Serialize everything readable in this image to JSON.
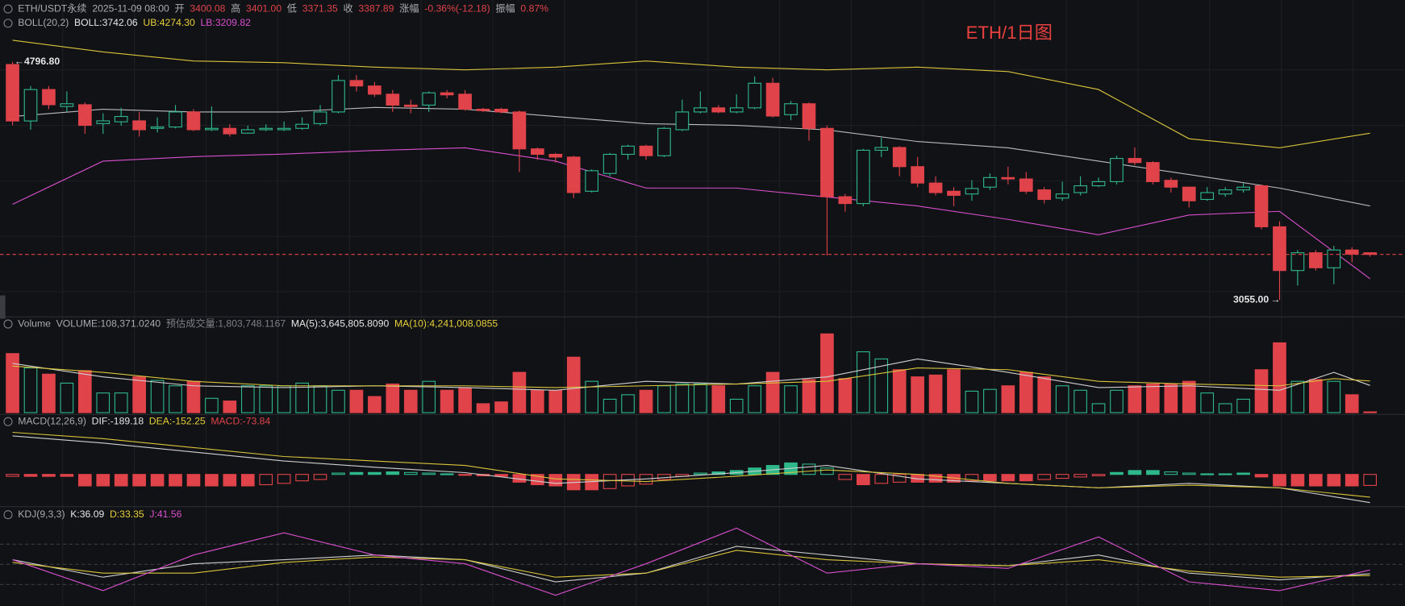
{
  "chart_data": {
    "type": "candlestick",
    "title": "ETH/1日图",
    "title_color": "#e8403f",
    "colors": {
      "up": "#2eb88a",
      "down": "#e0434a"
    },
    "annotations": {
      "high_label": "4796.80",
      "low_label": "3055.00"
    },
    "legends": {
      "main": [
        {
          "text": "ETH/USDT永续",
          "color": "#a9abb0"
        },
        {
          "text": "2025-11-09 08:00",
          "color": "#a9abb0"
        },
        {
          "text": "开",
          "color": "#a9abb0"
        },
        {
          "text": "3400.08",
          "color": "#e0434a"
        },
        {
          "text": "高",
          "color": "#a9abb0"
        },
        {
          "text": "3401.00",
          "color": "#e0434a"
        },
        {
          "text": "低",
          "color": "#a9abb0"
        },
        {
          "text": "3371.35",
          "color": "#e0434a"
        },
        {
          "text": "收",
          "color": "#a9abb0"
        },
        {
          "text": "3387.89",
          "color": "#e0434a"
        },
        {
          "text": "涨幅",
          "color": "#a9abb0"
        },
        {
          "text": "-0.36%(-12.18)",
          "color": "#e0434a"
        },
        {
          "text": "振幅",
          "color": "#a9abb0"
        },
        {
          "text": "0.87%",
          "color": "#e0434a"
        }
      ],
      "boll": [
        {
          "text": "BOLL(20,2)",
          "color": "#a9abb0"
        },
        {
          "text": "BOLL:3742.06",
          "color": "#e6e6e6"
        },
        {
          "text": "UB:4274.30",
          "color": "#e6cf3a"
        },
        {
          "text": "LB:3209.82",
          "color": "#d94fcf"
        }
      ],
      "volume": [
        {
          "text": "Volume",
          "color": "#a9abb0"
        },
        {
          "text": "VOLUME:108,371.0240",
          "color": "#a9abb0"
        },
        {
          "text": "预估成交量:1,803,748.1167",
          "color": "#7c7f86"
        },
        {
          "text": "MA(5):3,645,805.8090",
          "color": "#e6e6e6"
        },
        {
          "text": "MA(10):4,241,008.0855",
          "color": "#e6cf3a"
        }
      ],
      "macd": [
        {
          "text": "MACD(12,26,9)",
          "color": "#a9abb0"
        },
        {
          "text": "DIF:-189.18",
          "color": "#e6e6e6"
        },
        {
          "text": "DEA:-152.25",
          "color": "#e6cf3a"
        },
        {
          "text": "MACD:-73.84",
          "color": "#e0434a"
        }
      ],
      "kdj": [
        {
          "text": "KDJ(9,3,3)",
          "color": "#a9abb0"
        },
        {
          "text": "K:36.09",
          "color": "#e6e6e6"
        },
        {
          "text": "D:33.35",
          "color": "#e6cf3a"
        },
        {
          "text": "J:41.56",
          "color": "#d94fcf"
        }
      ]
    },
    "ylim": [
      2944,
      5249
    ],
    "candles": {
      "open": [
        4777,
        4364,
        4594,
        4470,
        4483,
        4345,
        4358,
        4365,
        4310,
        4320,
        4430,
        4300,
        4310,
        4275,
        4300,
        4300,
        4310,
        4345,
        4430,
        4660,
        4620,
        4560,
        4480,
        4480,
        4570,
        4560,
        4450,
        4450,
        4430,
        4160,
        4120,
        4100,
        3850,
        3980,
        4120,
        4180,
        4110,
        4300,
        4430,
        4460,
        4430,
        4460,
        4640,
        4410,
        4490,
        4310,
        3810,
        3760,
        4150,
        4170,
        4030,
        3910,
        3850,
        3830,
        3880,
        3950,
        3940,
        3860,
        3800,
        3840,
        3890,
        3920,
        4090,
        4060,
        3930,
        3880,
        3790,
        3830,
        3860,
        3890,
        3590,
        3270,
        3400,
        3290,
        3420,
        3400.08
      ],
      "high": [
        4796.8,
        4620,
        4620,
        4580,
        4500,
        4420,
        4460,
        4430,
        4390,
        4480,
        4450,
        4470,
        4340,
        4330,
        4340,
        4360,
        4390,
        4480,
        4700,
        4700,
        4650,
        4590,
        4520,
        4580,
        4590,
        4590,
        4460,
        4460,
        4440,
        4170,
        4130,
        4110,
        4010,
        4130,
        4190,
        4190,
        4320,
        4520,
        4580,
        4480,
        4560,
        4690,
        4680,
        4510,
        4500,
        4330,
        3830,
        4160,
        4240,
        4180,
        4100,
        3960,
        3880,
        3930,
        3980,
        4030,
        3990,
        3880,
        3920,
        3960,
        3950,
        4110,
        4170,
        4070,
        3950,
        3880,
        3880,
        3880,
        3910,
        3900,
        3630,
        3420,
        3420,
        3450,
        3440,
        3401
      ],
      "low": [
        4332,
        4300,
        4450,
        4430,
        4270,
        4270,
        4330,
        4250,
        4280,
        4310,
        4290,
        4290,
        4250,
        4270,
        4290,
        4290,
        4300,
        4330,
        4420,
        4580,
        4540,
        4430,
        4420,
        4430,
        4530,
        4440,
        4430,
        4420,
        3990,
        4080,
        4060,
        3800,
        3840,
        3960,
        4080,
        4080,
        4100,
        4290,
        4420,
        4420,
        4420,
        4450,
        4390,
        4370,
        4220,
        3380,
        3700,
        3740,
        4100,
        3960,
        3880,
        3820,
        3740,
        3780,
        3860,
        3900,
        3830,
        3760,
        3780,
        3820,
        3880,
        3900,
        4040,
        3900,
        3840,
        3730,
        3780,
        3810,
        3840,
        3570,
        3055,
        3160,
        3270,
        3170,
        3330,
        3371.35
      ],
      "close": [
        4364,
        4594,
        4483,
        4490,
        4332,
        4365,
        4397,
        4300,
        4320,
        4430,
        4300,
        4310,
        4270,
        4300,
        4310,
        4310,
        4340,
        4430,
        4660,
        4620,
        4560,
        4480,
        4470,
        4570,
        4555,
        4450,
        4440,
        4430,
        4160,
        4120,
        4100,
        3840,
        4000,
        4120,
        4180,
        4110,
        4310,
        4430,
        4460,
        4430,
        4460,
        4640,
        4400,
        4490,
        4310,
        3810,
        3760,
        4150,
        4170,
        4030,
        3910,
        3840,
        3820,
        3870,
        3950,
        3940,
        3850,
        3790,
        3830,
        3890,
        3920,
        4090,
        4060,
        3920,
        3880,
        3780,
        3840,
        3860,
        3880,
        3590,
        3270,
        3400,
        3290,
        3420,
        3390,
        3387.89
      ]
    },
    "boll": [
      {
        "color": "#d9c43c",
        "x": [
          0,
          5,
          10,
          15,
          20,
          25,
          30,
          35,
          40,
          45,
          50,
          55,
          60,
          65,
          70,
          75
        ],
        "values": [
          4954,
          4869,
          4803,
          4790,
          4758,
          4738,
          4758,
          4803,
          4758,
          4738,
          4758,
          4725,
          4594,
          4234,
          4168,
          4274.3
        ]
      },
      {
        "color": "#b9bbbf",
        "x": [
          0,
          5,
          10,
          15,
          20,
          25,
          30,
          35,
          40,
          45,
          50,
          55,
          60,
          65,
          70,
          75
        ],
        "values": [
          4397,
          4450,
          4430,
          4430,
          4463,
          4450,
          4397,
          4345,
          4332,
          4299,
          4214,
          4168,
          4070,
          3972,
          3873,
          3742.06
        ]
      },
      {
        "color": "#d94fcf",
        "x": [
          0,
          5,
          10,
          15,
          20,
          25,
          30,
          35,
          40,
          45,
          50,
          55,
          60,
          65,
          70,
          75
        ],
        "values": [
          3755,
          4070,
          4103,
          4122,
          4148,
          4168,
          4070,
          3873,
          3873,
          3808,
          3742,
          3644,
          3532,
          3676,
          3703,
          3209.82
        ]
      }
    ],
    "volume": {
      "ylim": [
        0,
        10800000
      ],
      "values": [
        7920000,
        6000000,
        5160000,
        3960000,
        5640000,
        2640000,
        2640000,
        4800000,
        4320000,
        3600000,
        4200000,
        1920000,
        1560000,
        3600000,
        3600000,
        3600000,
        3960000,
        3600000,
        3000000,
        3000000,
        2160000,
        3840000,
        3000000,
        4200000,
        3000000,
        3360000,
        1200000,
        1440000,
        5400000,
        3000000,
        3000000,
        7440000,
        4200000,
        1800000,
        2400000,
        3000000,
        3600000,
        3840000,
        3840000,
        3600000,
        1800000,
        3600000,
        5400000,
        3600000,
        4440000,
        10560000,
        4560000,
        8160000,
        7200000,
        5760000,
        4800000,
        5040000,
        5760000,
        2880000,
        3120000,
        3600000,
        5400000,
        4800000,
        3600000,
        3000000,
        1200000,
        3000000,
        3600000,
        3840000,
        3840000,
        4200000,
        2640000,
        1200000,
        1800000,
        5760000,
        9360000,
        4200000,
        4440000,
        4200000,
        2400000,
        108371.024
      ],
      "lines": [
        {
          "color": "#d0d0d0",
          "x": [
            0,
            5,
            10,
            15,
            20,
            25,
            30,
            35,
            40,
            45,
            50,
            55,
            60,
            65,
            70,
            73,
            75
          ],
          "values": [
            6600000,
            4800000,
            3600000,
            3360000,
            3600000,
            3360000,
            3000000,
            4200000,
            3840000,
            4800000,
            7200000,
            5400000,
            3360000,
            3600000,
            3000000,
            5400000,
            3645805.809
          ]
        },
        {
          "color": "#d9c43c",
          "x": [
            0,
            5,
            10,
            15,
            20,
            25,
            30,
            35,
            40,
            45,
            50,
            55,
            60,
            65,
            70,
            73,
            75
          ],
          "values": [
            6240000,
            5400000,
            4200000,
            3600000,
            3600000,
            3600000,
            3360000,
            3600000,
            3840000,
            4200000,
            6000000,
            5760000,
            4200000,
            3840000,
            3600000,
            4560000,
            4241008.0855
          ]
        }
      ]
    },
    "macd": {
      "ylim": [
        -228,
        312
      ],
      "values": [
        -13,
        -13,
        -13,
        -13,
        -77,
        -77,
        -77,
        -77,
        -77,
        -77,
        -77,
        -77,
        -77,
        -77,
        -69,
        -60,
        -43,
        -34,
        9,
        13,
        13,
        17,
        13,
        9,
        4,
        -4,
        -9,
        -13,
        -52,
        -69,
        -77,
        -103,
        -103,
        -95,
        -77,
        -65,
        -34,
        -13,
        9,
        17,
        26,
        43,
        60,
        77,
        69,
        43,
        -34,
        -69,
        -60,
        -52,
        -52,
        -52,
        -52,
        -43,
        -43,
        -43,
        -43,
        -34,
        -26,
        -17,
        -9,
        13,
        26,
        26,
        17,
        9,
        4,
        4,
        9,
        -17,
        -77,
        -77,
        -77,
        -77,
        -77,
        -73.84
      ],
      "lines": [
        {
          "color": "#d0d0d0",
          "x": [
            0,
            5,
            10,
            15,
            20,
            25,
            30,
            35,
            40,
            45,
            50,
            55,
            60,
            65,
            70,
            75
          ],
          "values": [
            258,
            210,
            150,
            90,
            48,
            12,
            -60,
            -30,
            12,
            60,
            -30,
            -60,
            -90,
            -60,
            -90,
            -189.18
          ]
        },
        {
          "color": "#d9c43c",
          "x": [
            0,
            5,
            10,
            15,
            20,
            25,
            30,
            35,
            40,
            45,
            50,
            55,
            60,
            65,
            70,
            75
          ],
          "values": [
            282,
            240,
            180,
            120,
            90,
            60,
            -30,
            -48,
            -12,
            30,
            0,
            -60,
            -90,
            -72,
            -90,
            -152.25
          ]
        }
      ]
    },
    "kdj": {
      "ylim": [
        -12,
        104
      ],
      "levels": [
        20,
        50,
        80
      ],
      "lines": [
        {
          "color": "#d0d0d0",
          "x": [
            0,
            5,
            10,
            15,
            20,
            25,
            30,
            35,
            40,
            45,
            50,
            55,
            60,
            65,
            70,
            75
          ],
          "values": [
            57,
            31,
            51,
            57,
            64,
            57,
            24,
            37,
            77,
            64,
            51,
            48,
            64,
            37,
            27,
            36.09
          ]
        },
        {
          "color": "#d9c43c",
          "x": [
            0,
            5,
            10,
            15,
            20,
            25,
            30,
            35,
            40,
            45,
            50,
            55,
            60,
            65,
            70,
            75
          ],
          "values": [
            53,
            37,
            37,
            53,
            61,
            57,
            31,
            37,
            71,
            57,
            51,
            48,
            57,
            40,
            31,
            33.35
          ]
        },
        {
          "color": "#d94fcf",
          "x": [
            0,
            5,
            10,
            15,
            20,
            25,
            30,
            35,
            40,
            45,
            50,
            55,
            60,
            65,
            70,
            75
          ],
          "values": [
            57,
            11,
            64,
            97,
            64,
            51,
            4,
            51,
            104,
            37,
            51,
            44,
            91,
            24,
            11,
            41.56
          ]
        }
      ]
    }
  }
}
